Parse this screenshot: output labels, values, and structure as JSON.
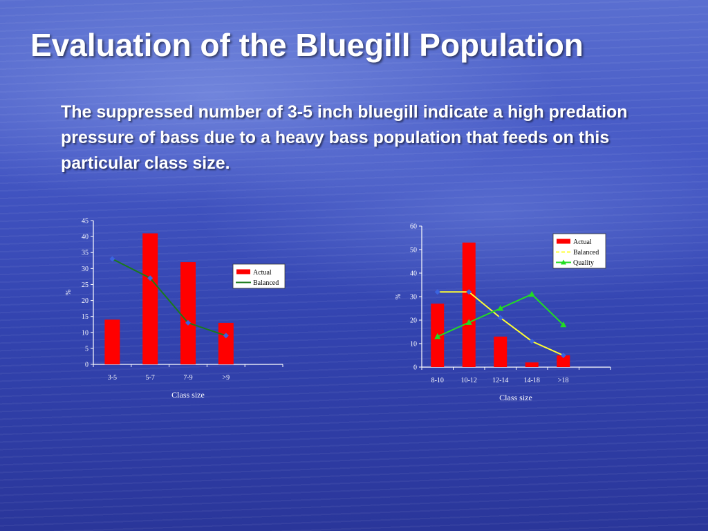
{
  "slide": {
    "title": "Evaluation of the Bluegill Population",
    "body_text": "The suppressed number of 3-5 inch bluegill indicate a high predation pressure of bass due to a heavy bass population that feeds on this particular class size."
  },
  "colors": {
    "actual": "#ff0000",
    "balanced_left": "#1a7a1a",
    "balanced_right": "#ffff33",
    "quality": "#22dd22",
    "marker": "#3b63e0"
  },
  "chart_data": [
    {
      "type": "bar",
      "xlabel": "Class size",
      "ylabel": "%",
      "ylim": [
        0,
        45
      ],
      "yticks": [
        0,
        5,
        10,
        15,
        20,
        25,
        30,
        35,
        40,
        45
      ],
      "categories": [
        "3-5",
        "5-7",
        "7-9",
        ">9"
      ],
      "series": [
        {
          "name": "Actual",
          "kind": "bar",
          "values": [
            14,
            41,
            32,
            13
          ]
        },
        {
          "name": "Balanced",
          "kind": "line",
          "values": [
            33,
            27,
            13,
            9
          ]
        }
      ],
      "legend_position": "right"
    },
    {
      "type": "bar",
      "xlabel": "Class size",
      "ylabel": "%",
      "ylim": [
        0,
        60
      ],
      "yticks": [
        0,
        10,
        20,
        30,
        40,
        50,
        60
      ],
      "categories": [
        "8-10",
        "10-12",
        "12-14",
        "14-18",
        ">18"
      ],
      "series": [
        {
          "name": "Actual",
          "kind": "bar",
          "values": [
            27,
            53,
            13,
            2,
            5
          ]
        },
        {
          "name": "Balanced",
          "kind": "line",
          "dashed": true,
          "values": [
            32,
            32,
            21,
            11,
            5
          ]
        },
        {
          "name": "Quality",
          "kind": "line",
          "values": [
            13,
            19,
            25,
            31,
            18
          ]
        }
      ],
      "legend_position": "top-right"
    }
  ]
}
